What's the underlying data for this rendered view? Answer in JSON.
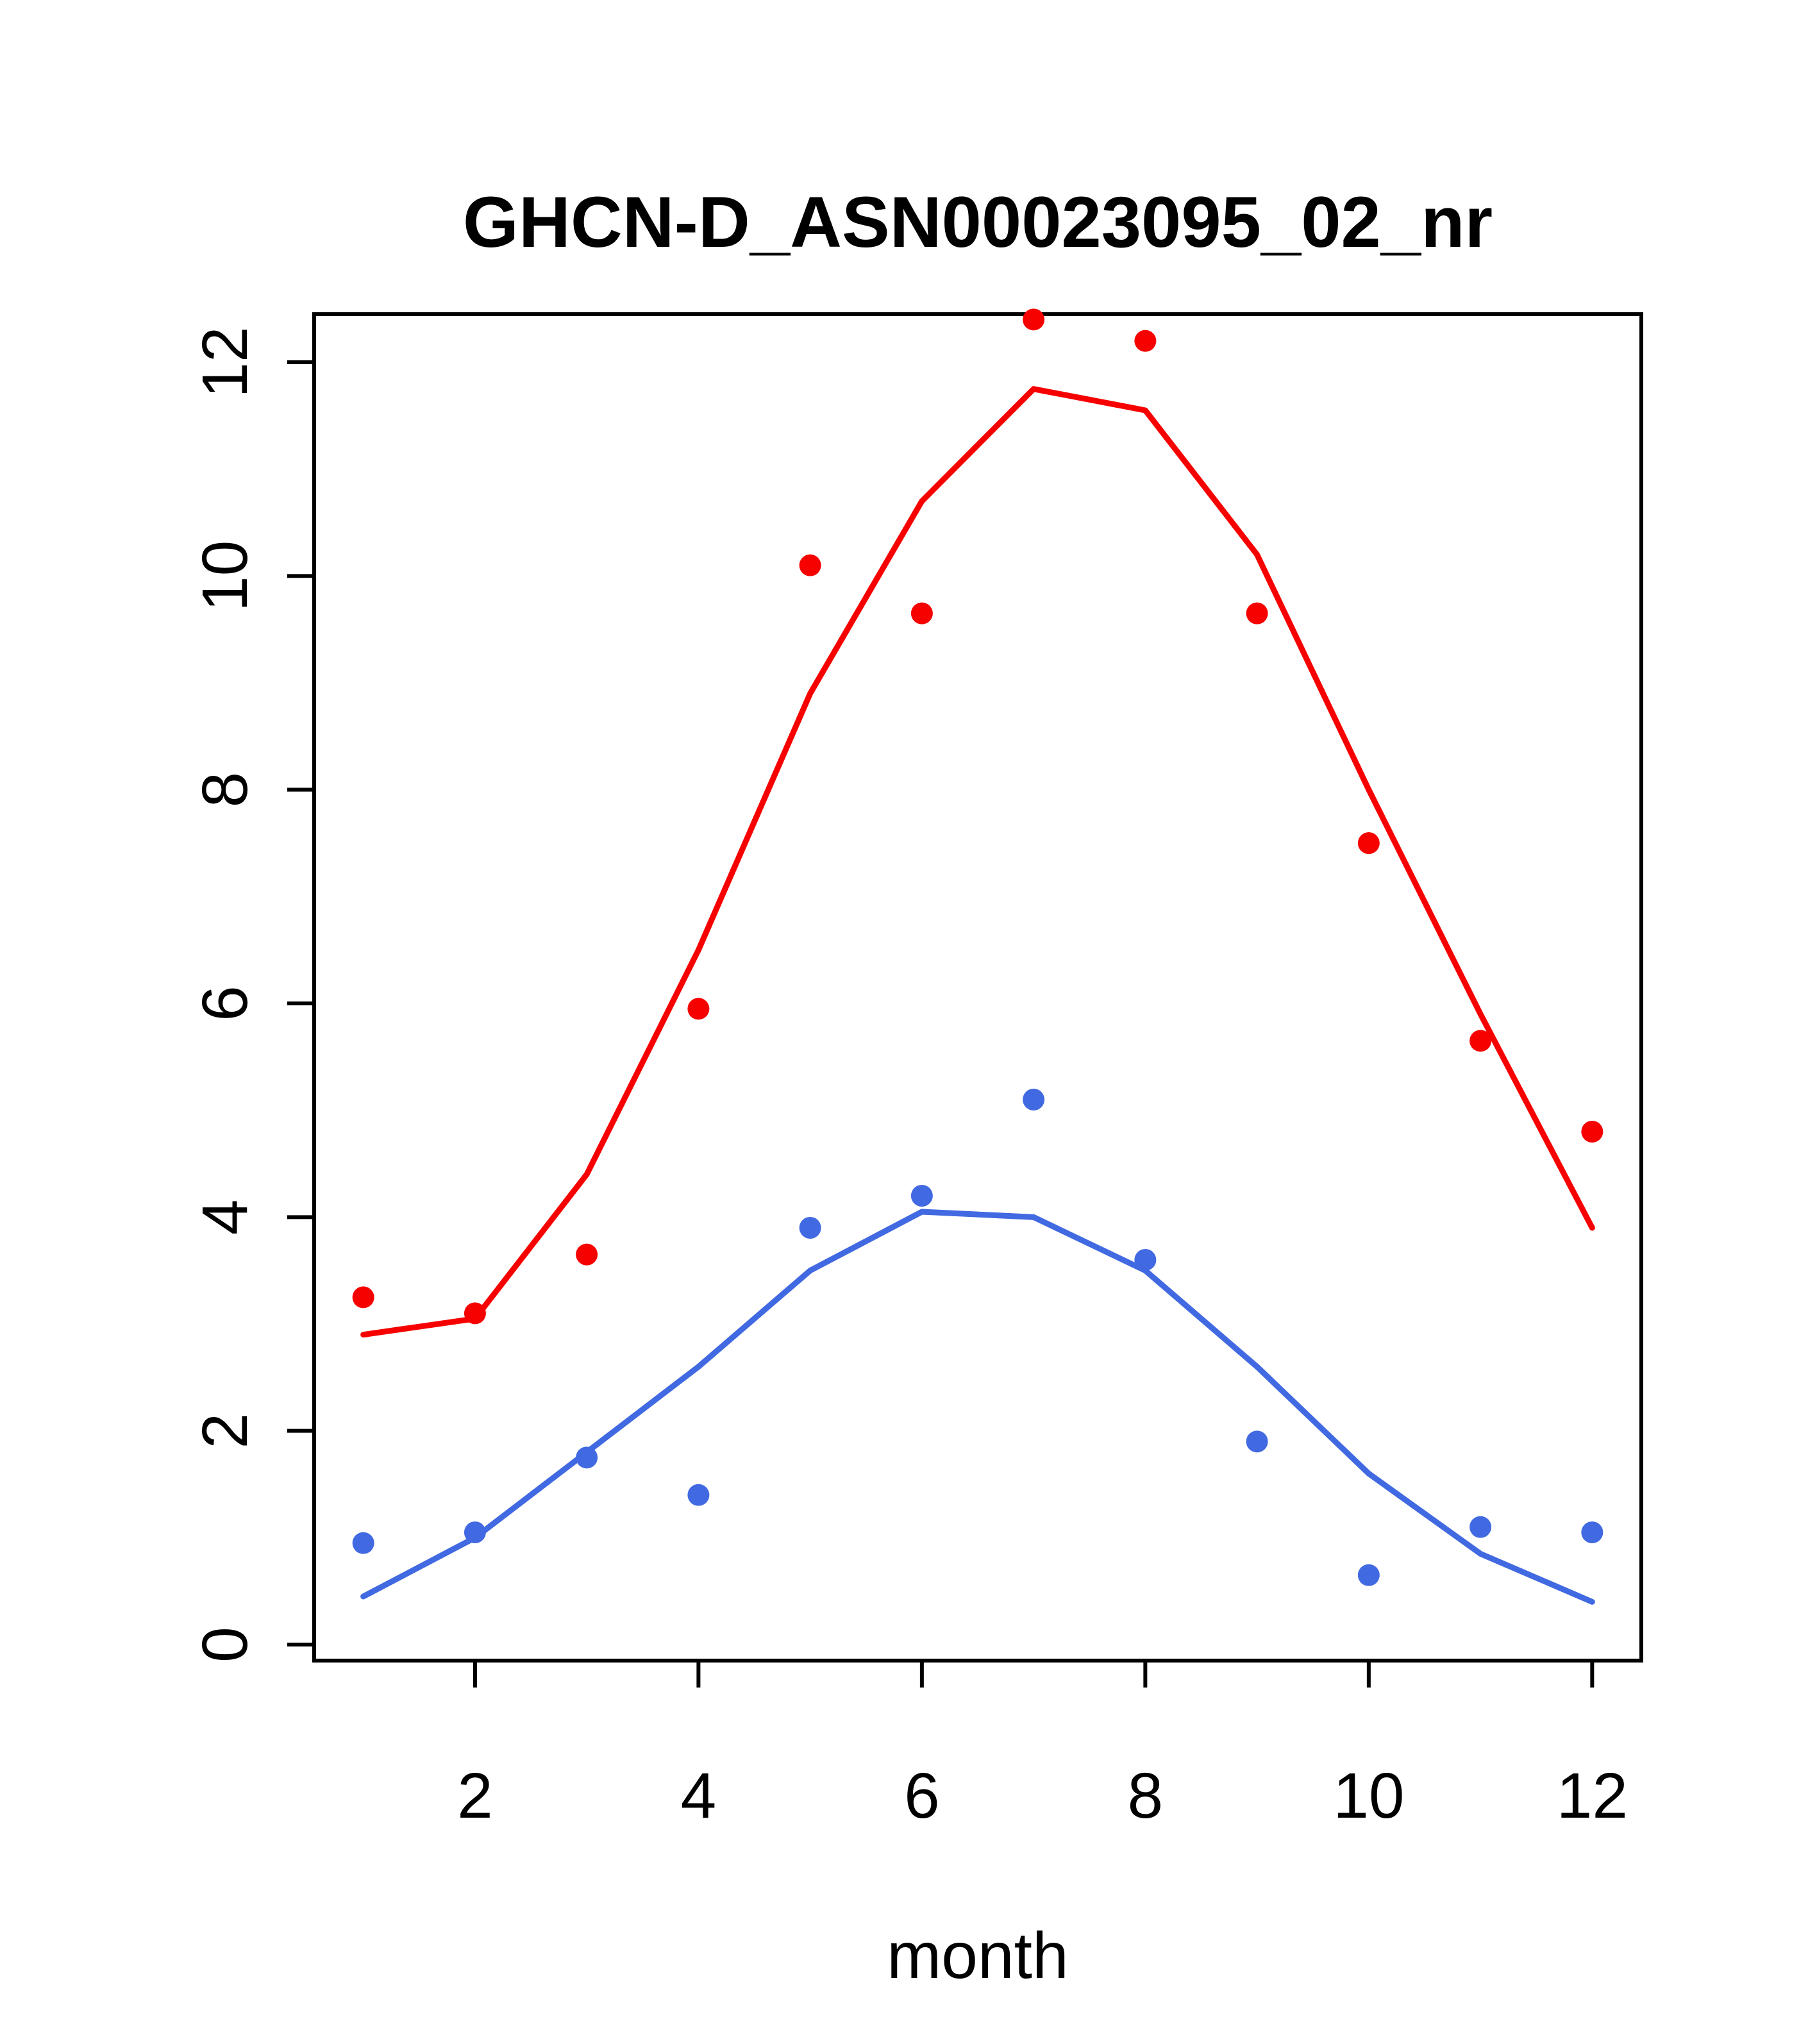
{
  "page": {
    "background": "#ffffff"
  },
  "chart_data": {
    "type": "line",
    "title": "GHCN-D_ASN00023095_02_nr",
    "xlabel": "month",
    "ylabel": "",
    "x": [
      1,
      2,
      3,
      4,
      5,
      6,
      7,
      8,
      9,
      10,
      11,
      12
    ],
    "xticks": [
      2,
      4,
      6,
      8,
      10,
      12
    ],
    "yticks": [
      0,
      2,
      4,
      6,
      8,
      10,
      12
    ],
    "xlim": [
      0.56,
      12.44
    ],
    "ylim": [
      -0.15,
      12.45
    ],
    "grid": false,
    "legend": "none",
    "series": [
      {
        "name": "red-fitted-line",
        "style": "line",
        "color": "#f60000",
        "values": [
          2.9,
          3.05,
          4.4,
          6.5,
          8.9,
          10.7,
          11.75,
          11.55,
          10.2,
          8.0,
          5.9,
          3.9
        ]
      },
      {
        "name": "blue-fitted-line",
        "style": "line",
        "color": "#4169e1",
        "values": [
          0.45,
          1.0,
          1.8,
          2.6,
          3.5,
          4.05,
          4.0,
          3.5,
          2.6,
          1.6,
          0.85,
          0.4
        ]
      },
      {
        "name": "red-observed-points",
        "style": "points",
        "color": "#f60000",
        "values": [
          3.25,
          3.1,
          3.65,
          5.95,
          10.1,
          9.65,
          12.4,
          12.2,
          9.65,
          7.5,
          5.65,
          4.8
        ]
      },
      {
        "name": "blue-observed-points",
        "style": "points",
        "color": "#4169e1",
        "values": [
          0.95,
          1.05,
          1.75,
          1.4,
          3.9,
          4.2,
          5.1,
          3.6,
          1.9,
          0.65,
          1.1,
          1.05
        ]
      }
    ]
  }
}
